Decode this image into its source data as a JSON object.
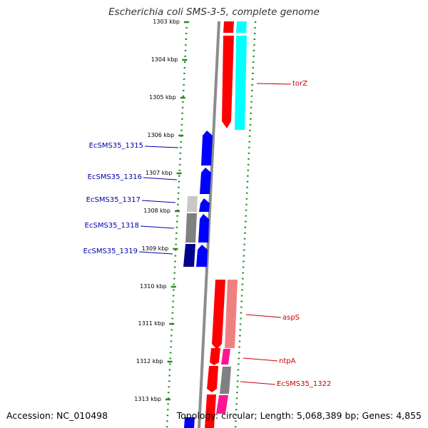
{
  "title": "Escherichia coli SMS-3-5, complete genome",
  "footer": {
    "accession": "Accession: NC_010498",
    "summary": "Topology: circular; Length: 5,068,389 bp; Genes: 4,855"
  },
  "colors": {
    "backbone": "#8c8c8c",
    "dots": "#228b22",
    "forward_cds": "#ff0000",
    "forward_cds_light": "#f08080",
    "reverse_cds": "#0000ff",
    "cyan_feature": "#00ffff",
    "magenta_feature": "#ff1493",
    "gray_feature": "#808080",
    "label_forward": "#cc0000",
    "label_reverse": "#0000aa"
  },
  "ticks": [
    {
      "label": "1303 kbp"
    },
    {
      "label": "1304 kbp"
    },
    {
      "label": "1305 kbp"
    },
    {
      "label": "1306 kbp"
    },
    {
      "label": "1307 kbp"
    },
    {
      "label": "1308 kbp"
    },
    {
      "label": "1309 kbp"
    },
    {
      "label": "1310 kbp"
    },
    {
      "label": "1311 kbp"
    },
    {
      "label": "1312 kbp"
    },
    {
      "label": "1313 kbp"
    }
  ],
  "labels": [
    {
      "text": "torZ",
      "strand": "forward"
    },
    {
      "text": "EcSMS35_1315",
      "strand": "reverse"
    },
    {
      "text": "EcSMS35_1316",
      "strand": "reverse"
    },
    {
      "text": "EcSMS35_1317",
      "strand": "reverse"
    },
    {
      "text": "EcSMS35_1318",
      "strand": "reverse"
    },
    {
      "text": "EcSMS35_1319",
      "strand": "reverse"
    },
    {
      "text": "aspS",
      "strand": "forward"
    },
    {
      "text": "ntpA",
      "strand": "forward"
    },
    {
      "text": "EcSMS35_1322",
      "strand": "forward"
    }
  ]
}
